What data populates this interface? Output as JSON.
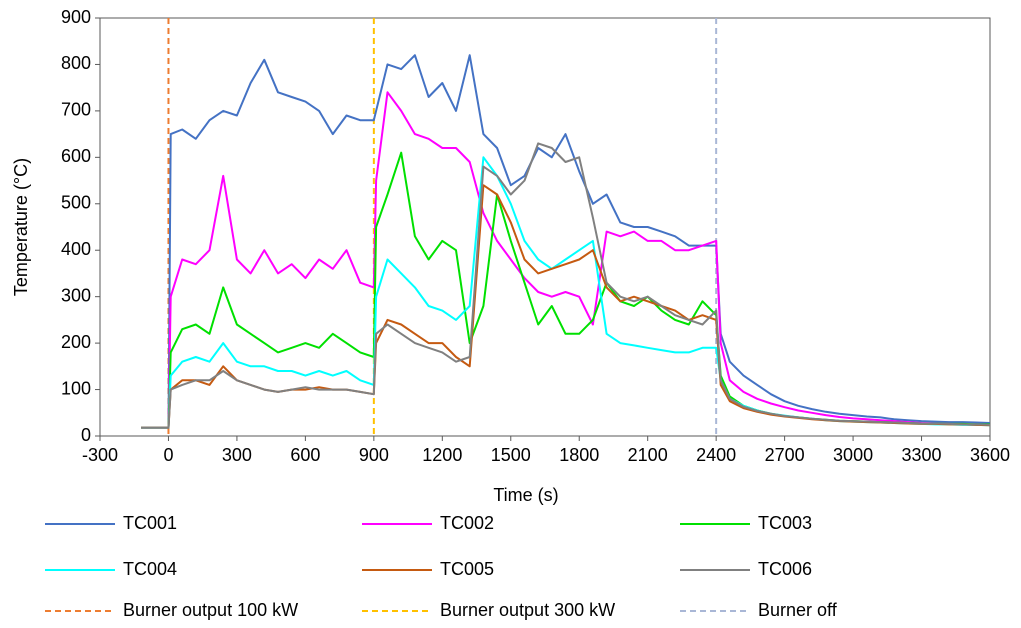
{
  "chart_data": {
    "type": "line",
    "xlabel": "Time (s)",
    "ylabel": "Temperature (°C)",
    "xlim": [
      -300,
      3600
    ],
    "xticks": [
      -300,
      0,
      300,
      600,
      900,
      1200,
      1500,
      1800,
      2100,
      2400,
      2700,
      3000,
      3300,
      3600
    ],
    "ylim": [
      0,
      900
    ],
    "yticks": [
      0,
      100,
      200,
      300,
      400,
      500,
      600,
      700,
      800,
      900
    ],
    "x": [
      -120,
      -60,
      0,
      10,
      60,
      120,
      180,
      240,
      300,
      360,
      420,
      480,
      540,
      600,
      660,
      720,
      780,
      840,
      900,
      910,
      960,
      1020,
      1080,
      1140,
      1200,
      1260,
      1320,
      1380,
      1440,
      1500,
      1560,
      1620,
      1680,
      1740,
      1800,
      1860,
      1920,
      1980,
      2040,
      2100,
      2160,
      2220,
      2280,
      2340,
      2400,
      2420,
      2460,
      2520,
      2580,
      2640,
      2700,
      2760,
      2820,
      2880,
      2940,
      3000,
      3060,
      3120,
      3180,
      3240,
      3300,
      3360,
      3420,
      3480,
      3540,
      3600
    ],
    "series": [
      {
        "name": "TC001",
        "color": "#4472c4",
        "values": [
          18,
          18,
          18,
          650,
          660,
          640,
          680,
          700,
          690,
          760,
          810,
          740,
          730,
          720,
          700,
          650,
          690,
          680,
          680,
          700,
          800,
          790,
          820,
          730,
          760,
          700,
          820,
          650,
          620,
          540,
          560,
          620,
          600,
          650,
          570,
          500,
          520,
          460,
          450,
          450,
          440,
          430,
          410,
          410,
          410,
          220,
          160,
          130,
          110,
          90,
          75,
          65,
          58,
          52,
          48,
          45,
          42,
          40,
          36,
          34,
          32,
          31,
          30,
          30,
          29,
          28
        ]
      },
      {
        "name": "TC002",
        "color": "#ff00ff",
        "values": [
          18,
          18,
          18,
          300,
          380,
          370,
          400,
          560,
          380,
          350,
          400,
          350,
          370,
          340,
          380,
          360,
          400,
          330,
          320,
          550,
          740,
          700,
          650,
          640,
          620,
          620,
          590,
          480,
          420,
          380,
          340,
          310,
          300,
          310,
          300,
          240,
          440,
          430,
          440,
          420,
          420,
          400,
          400,
          410,
          420,
          200,
          120,
          95,
          80,
          70,
          62,
          55,
          50,
          45,
          41,
          38,
          36,
          34,
          32,
          30,
          28,
          27,
          26,
          25,
          24,
          24
        ]
      },
      {
        "name": "TC003",
        "color": "#00e000",
        "values": [
          18,
          18,
          18,
          180,
          230,
          240,
          220,
          320,
          240,
          220,
          200,
          180,
          190,
          200,
          190,
          220,
          200,
          180,
          170,
          450,
          520,
          610,
          430,
          380,
          420,
          400,
          200,
          280,
          520,
          420,
          330,
          240,
          280,
          220,
          220,
          250,
          330,
          290,
          280,
          300,
          270,
          250,
          240,
          290,
          260,
          130,
          85,
          65,
          55,
          48,
          43,
          40,
          37,
          35,
          33,
          32,
          31,
          30,
          29,
          28,
          27,
          27,
          26,
          26,
          25,
          25
        ]
      },
      {
        "name": "TC004",
        "color": "#00ffff",
        "values": [
          18,
          18,
          18,
          130,
          160,
          170,
          160,
          200,
          160,
          150,
          150,
          140,
          140,
          130,
          140,
          130,
          140,
          120,
          110,
          300,
          380,
          350,
          320,
          280,
          270,
          250,
          280,
          600,
          560,
          500,
          420,
          380,
          360,
          380,
          400,
          420,
          220,
          200,
          195,
          190,
          185,
          180,
          180,
          190,
          190,
          120,
          80,
          65,
          55,
          48,
          44,
          40,
          37,
          34,
          32,
          31,
          30,
          29,
          28,
          27,
          26,
          25,
          25,
          24,
          24,
          23
        ]
      },
      {
        "name": "TC005",
        "color": "#c55a11",
        "values": [
          18,
          18,
          18,
          100,
          120,
          120,
          110,
          150,
          120,
          110,
          100,
          95,
          100,
          100,
          105,
          100,
          100,
          95,
          90,
          200,
          250,
          240,
          220,
          200,
          200,
          170,
          150,
          540,
          520,
          460,
          380,
          350,
          360,
          370,
          380,
          400,
          320,
          290,
          300,
          290,
          280,
          270,
          250,
          260,
          250,
          110,
          75,
          60,
          52,
          46,
          42,
          39,
          36,
          34,
          32,
          31,
          30,
          29,
          28,
          27,
          26,
          26,
          25,
          25,
          24,
          23
        ]
      },
      {
        "name": "TC006",
        "color": "#808080",
        "values": [
          18,
          18,
          18,
          100,
          110,
          120,
          120,
          140,
          120,
          110,
          100,
          95,
          100,
          105,
          100,
          100,
          100,
          95,
          90,
          220,
          240,
          220,
          200,
          190,
          180,
          160,
          170,
          580,
          560,
          520,
          550,
          630,
          620,
          590,
          600,
          470,
          330,
          300,
          290,
          300,
          280,
          260,
          250,
          240,
          270,
          120,
          80,
          63,
          54,
          48,
          43,
          40,
          37,
          35,
          33,
          32,
          31,
          30,
          29,
          28,
          27,
          27,
          26,
          25,
          25,
          24
        ]
      }
    ],
    "vlines": [
      {
        "name": "Burner output 100 kW",
        "color": "#ed7d31",
        "x": 0
      },
      {
        "name": "Burner output 300 kW",
        "color": "#ffc000",
        "x": 900
      },
      {
        "name": "Burner off",
        "color": "#a9b7d6",
        "x": 2400
      }
    ]
  }
}
